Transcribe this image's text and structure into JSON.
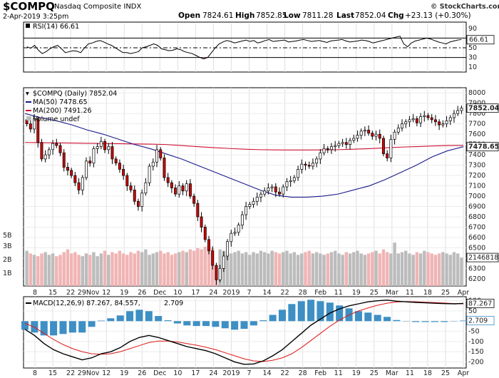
{
  "header": {
    "symbol": "$COMPQ",
    "name": "Nasdaq Composite INDX",
    "date": "2-Apr-2019 3:25pm",
    "open_label": "Open",
    "open": "7824.61",
    "high_label": "High",
    "high": "7852.85",
    "low_label": "Low",
    "low": "7811.28",
    "last_label": "Last",
    "last": "7852.04",
    "chg_label": "Chg",
    "chg": "+23.13 (+0.30%)",
    "watermark": "© StockCharts.com"
  },
  "colors": {
    "up": "#ffffff",
    "down": "#cc0000",
    "candle_edge": "#000000",
    "ma50": "#1a1a8c",
    "ma200": "#cc1133",
    "macd_line": "#000000",
    "signal_line": "#e01818",
    "hist": "#3d8fc4",
    "rsi_line": "#000000",
    "rsi_fill": "#b07080",
    "vol_up": "#bcbcbc",
    "vol_down": "#f0b4b4"
  },
  "chart_data": {
    "type": "candlestick",
    "x_ticks": [
      "8",
      "15",
      "22",
      "29Nov",
      "12",
      "19",
      "26",
      "Dec",
      "10",
      "17",
      "24",
      "2019",
      "7",
      "14",
      "22",
      "28",
      "Feb",
      "11",
      "19",
      "25",
      "Mar",
      "11",
      "18",
      "25",
      "Apr"
    ],
    "price": {
      "title": "$COMPQ (Daily) 7852.04",
      "y_ticks": [
        6200,
        6300,
        6400,
        6500,
        6600,
        6700,
        6800,
        6900,
        7000,
        7100,
        7200,
        7300,
        7400,
        7500,
        7600,
        7700,
        7800,
        7900,
        8000
      ],
      "ylim": [
        6130,
        8050
      ],
      "last_label": "7852.04",
      "legend": [
        {
          "text": "MA(50) 7478.65",
          "color": "#1a1a8c"
        },
        {
          "text": "MA(200) 7491.26",
          "color": "#cc1133"
        },
        {
          "text": "Volume undef",
          "color": "#000000"
        }
      ],
      "ma50_label": "7478.65",
      "ma200_label": "7491.26",
      "closes": [
        7700,
        7650,
        7750,
        7520,
        7360,
        7400,
        7450,
        7510,
        7490,
        7420,
        7280,
        7250,
        7200,
        7130,
        7060,
        7180,
        7340,
        7320,
        7460,
        7480,
        7530,
        7450,
        7480,
        7360,
        7320,
        7260,
        7200,
        7100,
        7060,
        6950,
        6900,
        7030,
        7130,
        7290,
        7330,
        7450,
        7370,
        7180,
        7130,
        7080,
        7020,
        7100,
        7050,
        7120,
        7000,
        6930,
        6800,
        6700,
        6580,
        6470,
        6330,
        6190,
        6300,
        6420,
        6560,
        6640,
        6650,
        6720,
        6820,
        6900,
        6920,
        6950,
        6990,
        7020,
        7050,
        7080,
        7090,
        7040,
        7020,
        7090,
        7140,
        7150,
        7180,
        7260,
        7310,
        7300,
        7290,
        7320,
        7360,
        7420,
        7460,
        7450,
        7480,
        7490,
        7510,
        7520,
        7500,
        7540,
        7560,
        7590,
        7630,
        7640,
        7610,
        7580,
        7600,
        7560,
        7410,
        7370,
        7550,
        7620,
        7660,
        7700,
        7720,
        7740,
        7750,
        7710,
        7770,
        7780,
        7760,
        7740,
        7720,
        7690,
        7700,
        7730,
        7760,
        7800,
        7829,
        7852
      ],
      "ma50": [
        7800,
        7760,
        7730,
        7690,
        7640,
        7600,
        7550,
        7500,
        7460,
        7410,
        7360,
        7300,
        7240,
        7180,
        7120,
        7060,
        7010,
        6990,
        6990,
        7000,
        7020,
        7060,
        7100,
        7160,
        7230,
        7300,
        7380,
        7440,
        7479
      ],
      "ma200": [
        7520,
        7518,
        7516,
        7514,
        7512,
        7510,
        7508,
        7506,
        7504,
        7500,
        7490,
        7480,
        7470,
        7462,
        7455,
        7450,
        7448,
        7447,
        7447,
        7448,
        7450,
        7455,
        7460,
        7468,
        7475,
        7480,
        7486,
        7490,
        7491
      ]
    },
    "rsi": {
      "title": "RSI(14) 66.61",
      "y_ticks": [
        90,
        70,
        50,
        30,
        10
      ],
      "ylim": [
        0,
        100
      ],
      "last_label": "66.61",
      "values": [
        52,
        49,
        55,
        45,
        38,
        42,
        48,
        52,
        55,
        48,
        40,
        42,
        44,
        43,
        40,
        50,
        58,
        60,
        63,
        65,
        62,
        58,
        55,
        50,
        45,
        40,
        40,
        38,
        40,
        42,
        50,
        52,
        55,
        58,
        55,
        48,
        46,
        44,
        45,
        48,
        46,
        42,
        40,
        38,
        34,
        30,
        27,
        30,
        40,
        50,
        58,
        62,
        65,
        63,
        60,
        62,
        64,
        66,
        63,
        65,
        60,
        62,
        65,
        67,
        63,
        64,
        65,
        66,
        62,
        63,
        64,
        66,
        67,
        65,
        63,
        64,
        65,
        63,
        61,
        64,
        65,
        66,
        67,
        64,
        62,
        63,
        64,
        66,
        65,
        63,
        60,
        62,
        64,
        66,
        68,
        70,
        72,
        74,
        58,
        52,
        60,
        64,
        66,
        68,
        70,
        68,
        65,
        62,
        60,
        58,
        62,
        64,
        66,
        67
      ],
      "fill_below": 30
    },
    "volume": {
      "y_ticks": [
        "1B",
        "2B",
        "3B",
        "5B"
      ],
      "last_label": "2146818",
      "values": [
        2.6,
        2.4,
        2.3,
        2.2,
        2.4,
        2.5,
        2.3,
        2.4,
        2.2,
        2.3,
        2.5,
        2.7,
        2.4,
        2.5,
        2.3,
        2.2,
        2.4,
        2.3,
        2.5,
        2.2,
        2.4,
        2.6,
        2.3,
        2.5,
        2.4,
        2.6,
        2.4,
        2.3,
        2.5,
        2.4,
        2.6,
        2.5,
        2.7,
        2.3,
        2.4,
        2.5,
        2.6,
        2.4,
        2.5,
        2.3,
        2.4,
        2.5,
        2.6,
        2.5,
        2.7,
        2.6,
        2.8,
        2.7,
        2.9,
        3.0,
        2.8,
        1.5,
        2.7,
        2.6,
        2.5,
        2.4,
        2.5,
        2.6,
        2.4,
        2.5,
        2.3,
        2.5,
        2.4,
        2.6,
        2.5,
        2.4,
        2.6,
        2.5,
        2.4,
        2.5,
        2.6,
        2.4,
        2.5,
        2.3,
        2.4,
        2.5,
        2.6,
        2.4,
        2.5,
        2.4,
        2.3,
        2.4,
        2.5,
        2.6,
        2.4,
        2.3,
        2.5,
        2.4,
        2.5,
        2.6,
        2.4,
        2.3,
        2.4,
        2.5,
        2.6,
        2.4,
        2.7,
        2.5,
        2.4,
        3.2,
        2.4,
        2.5,
        2.6,
        2.4,
        2.3,
        2.5,
        2.4,
        2.6,
        2.5,
        2.4,
        2.3,
        2.4,
        2.5,
        2.4,
        2.3,
        2.5,
        2.4,
        2.1
      ]
    },
    "macd": {
      "title": "MACD(12,26,9) 87.267, 84.557, 2.709",
      "title_main": "MACD(12,26,9) 87.267, 84.557,",
      "title_hist": "2.709",
      "y_ticks": [
        100,
        50,
        0,
        -50,
        -100,
        -150,
        -200
      ],
      "ylim": [
        -230,
        120
      ],
      "macd_label": "87.267",
      "signal_label": "84.557",
      "hist_label": "2.709",
      "macd": [
        -40,
        -70,
        -110,
        -140,
        -160,
        -175,
        -190,
        -180,
        -160,
        -150,
        -130,
        -100,
        -80,
        -70,
        -80,
        -95,
        -110,
        -125,
        -135,
        -145,
        -160,
        -180,
        -200,
        -212,
        -210,
        -195,
        -170,
        -140,
        -100,
        -60,
        -20,
        10,
        40,
        60,
        75,
        85,
        95,
        100,
        103,
        98,
        95,
        92,
        90,
        88,
        86,
        85,
        87
      ],
      "signal": [
        -10,
        -30,
        -60,
        -90,
        -115,
        -135,
        -150,
        -160,
        -162,
        -160,
        -150,
        -135,
        -120,
        -105,
        -98,
        -98,
        -102,
        -110,
        -118,
        -128,
        -140,
        -155,
        -170,
        -185,
        -195,
        -198,
        -192,
        -180,
        -160,
        -130,
        -95,
        -60,
        -25,
        5,
        30,
        50,
        65,
        78,
        88,
        94,
        96,
        95,
        93,
        91,
        89,
        86,
        85
      ]
    }
  }
}
